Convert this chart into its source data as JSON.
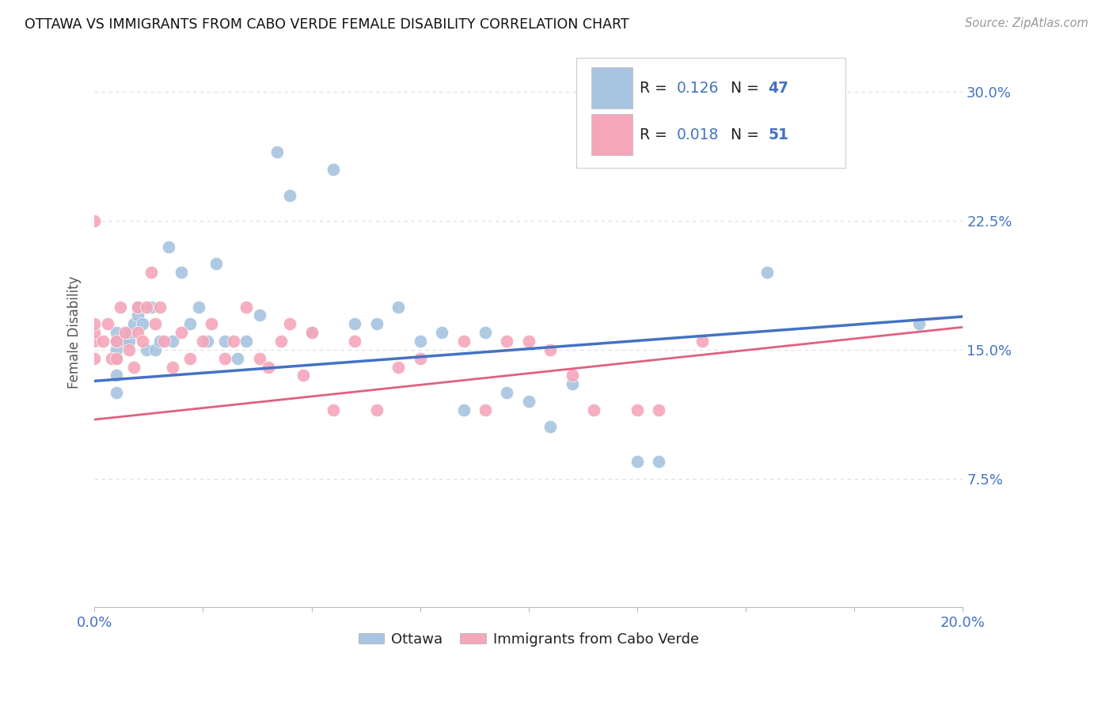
{
  "title": "OTTAWA VS IMMIGRANTS FROM CABO VERDE FEMALE DISABILITY CORRELATION CHART",
  "source": "Source: ZipAtlas.com",
  "ylabel": "Female Disability",
  "xlim": [
    0.0,
    0.2
  ],
  "ylim": [
    0.0,
    0.32
  ],
  "yticks": [
    0.0,
    0.075,
    0.15,
    0.225,
    0.3
  ],
  "ytick_labels": [
    "",
    "7.5%",
    "15.0%",
    "22.5%",
    "30.0%"
  ],
  "xticks": [
    0.0,
    0.025,
    0.05,
    0.075,
    0.1,
    0.125,
    0.15,
    0.175,
    0.2
  ],
  "xtick_labels_show": [
    "0.0%",
    "",
    "",
    "",
    "",
    "",
    "",
    "",
    "20.0%"
  ],
  "ottawa_color": "#a8c4e0",
  "cabo_color": "#f4a7b9",
  "ottawa_line_color": "#4472c4",
  "cabo_line_color": "#e06080",
  "R_ottawa": "0.126",
  "N_ottawa": "47",
  "R_cabo": "0.018",
  "N_cabo": "51",
  "background_color": "#ffffff",
  "grid_color": "#dddddd",
  "title_color": "#111111",
  "axis_label_color": "#4472c4",
  "ottawa_x": [
    0.005,
    0.005,
    0.005,
    0.005,
    0.005,
    0.005,
    0.007,
    0.008,
    0.008,
    0.009,
    0.01,
    0.01,
    0.011,
    0.012,
    0.013,
    0.014,
    0.015,
    0.017,
    0.018,
    0.02,
    0.022,
    0.024,
    0.026,
    0.028,
    0.03,
    0.033,
    0.035,
    0.038,
    0.042,
    0.045,
    0.05,
    0.055,
    0.06,
    0.065,
    0.07,
    0.075,
    0.08,
    0.085,
    0.09,
    0.095,
    0.1,
    0.105,
    0.11,
    0.125,
    0.13,
    0.155,
    0.19
  ],
  "ottawa_y": [
    0.145,
    0.15,
    0.155,
    0.16,
    0.135,
    0.125,
    0.155,
    0.155,
    0.16,
    0.165,
    0.17,
    0.175,
    0.165,
    0.15,
    0.175,
    0.15,
    0.155,
    0.21,
    0.155,
    0.195,
    0.165,
    0.175,
    0.155,
    0.2,
    0.155,
    0.145,
    0.155,
    0.17,
    0.265,
    0.24,
    0.16,
    0.255,
    0.165,
    0.165,
    0.175,
    0.155,
    0.16,
    0.115,
    0.16,
    0.125,
    0.12,
    0.105,
    0.13,
    0.085,
    0.085,
    0.195,
    0.165
  ],
  "cabo_x": [
    0.0,
    0.0,
    0.0,
    0.0,
    0.0,
    0.002,
    0.003,
    0.004,
    0.005,
    0.005,
    0.006,
    0.007,
    0.008,
    0.009,
    0.01,
    0.01,
    0.011,
    0.012,
    0.013,
    0.014,
    0.015,
    0.016,
    0.018,
    0.02,
    0.022,
    0.025,
    0.027,
    0.03,
    0.032,
    0.035,
    0.038,
    0.04,
    0.043,
    0.045,
    0.048,
    0.05,
    0.055,
    0.06,
    0.065,
    0.07,
    0.075,
    0.085,
    0.09,
    0.095,
    0.1,
    0.105,
    0.11,
    0.115,
    0.125,
    0.13,
    0.14
  ],
  "cabo_y": [
    0.145,
    0.155,
    0.16,
    0.165,
    0.225,
    0.155,
    0.165,
    0.145,
    0.145,
    0.155,
    0.175,
    0.16,
    0.15,
    0.14,
    0.16,
    0.175,
    0.155,
    0.175,
    0.195,
    0.165,
    0.175,
    0.155,
    0.14,
    0.16,
    0.145,
    0.155,
    0.165,
    0.145,
    0.155,
    0.175,
    0.145,
    0.14,
    0.155,
    0.165,
    0.135,
    0.16,
    0.115,
    0.155,
    0.115,
    0.14,
    0.145,
    0.155,
    0.115,
    0.155,
    0.155,
    0.15,
    0.135,
    0.115,
    0.115,
    0.115,
    0.155
  ]
}
